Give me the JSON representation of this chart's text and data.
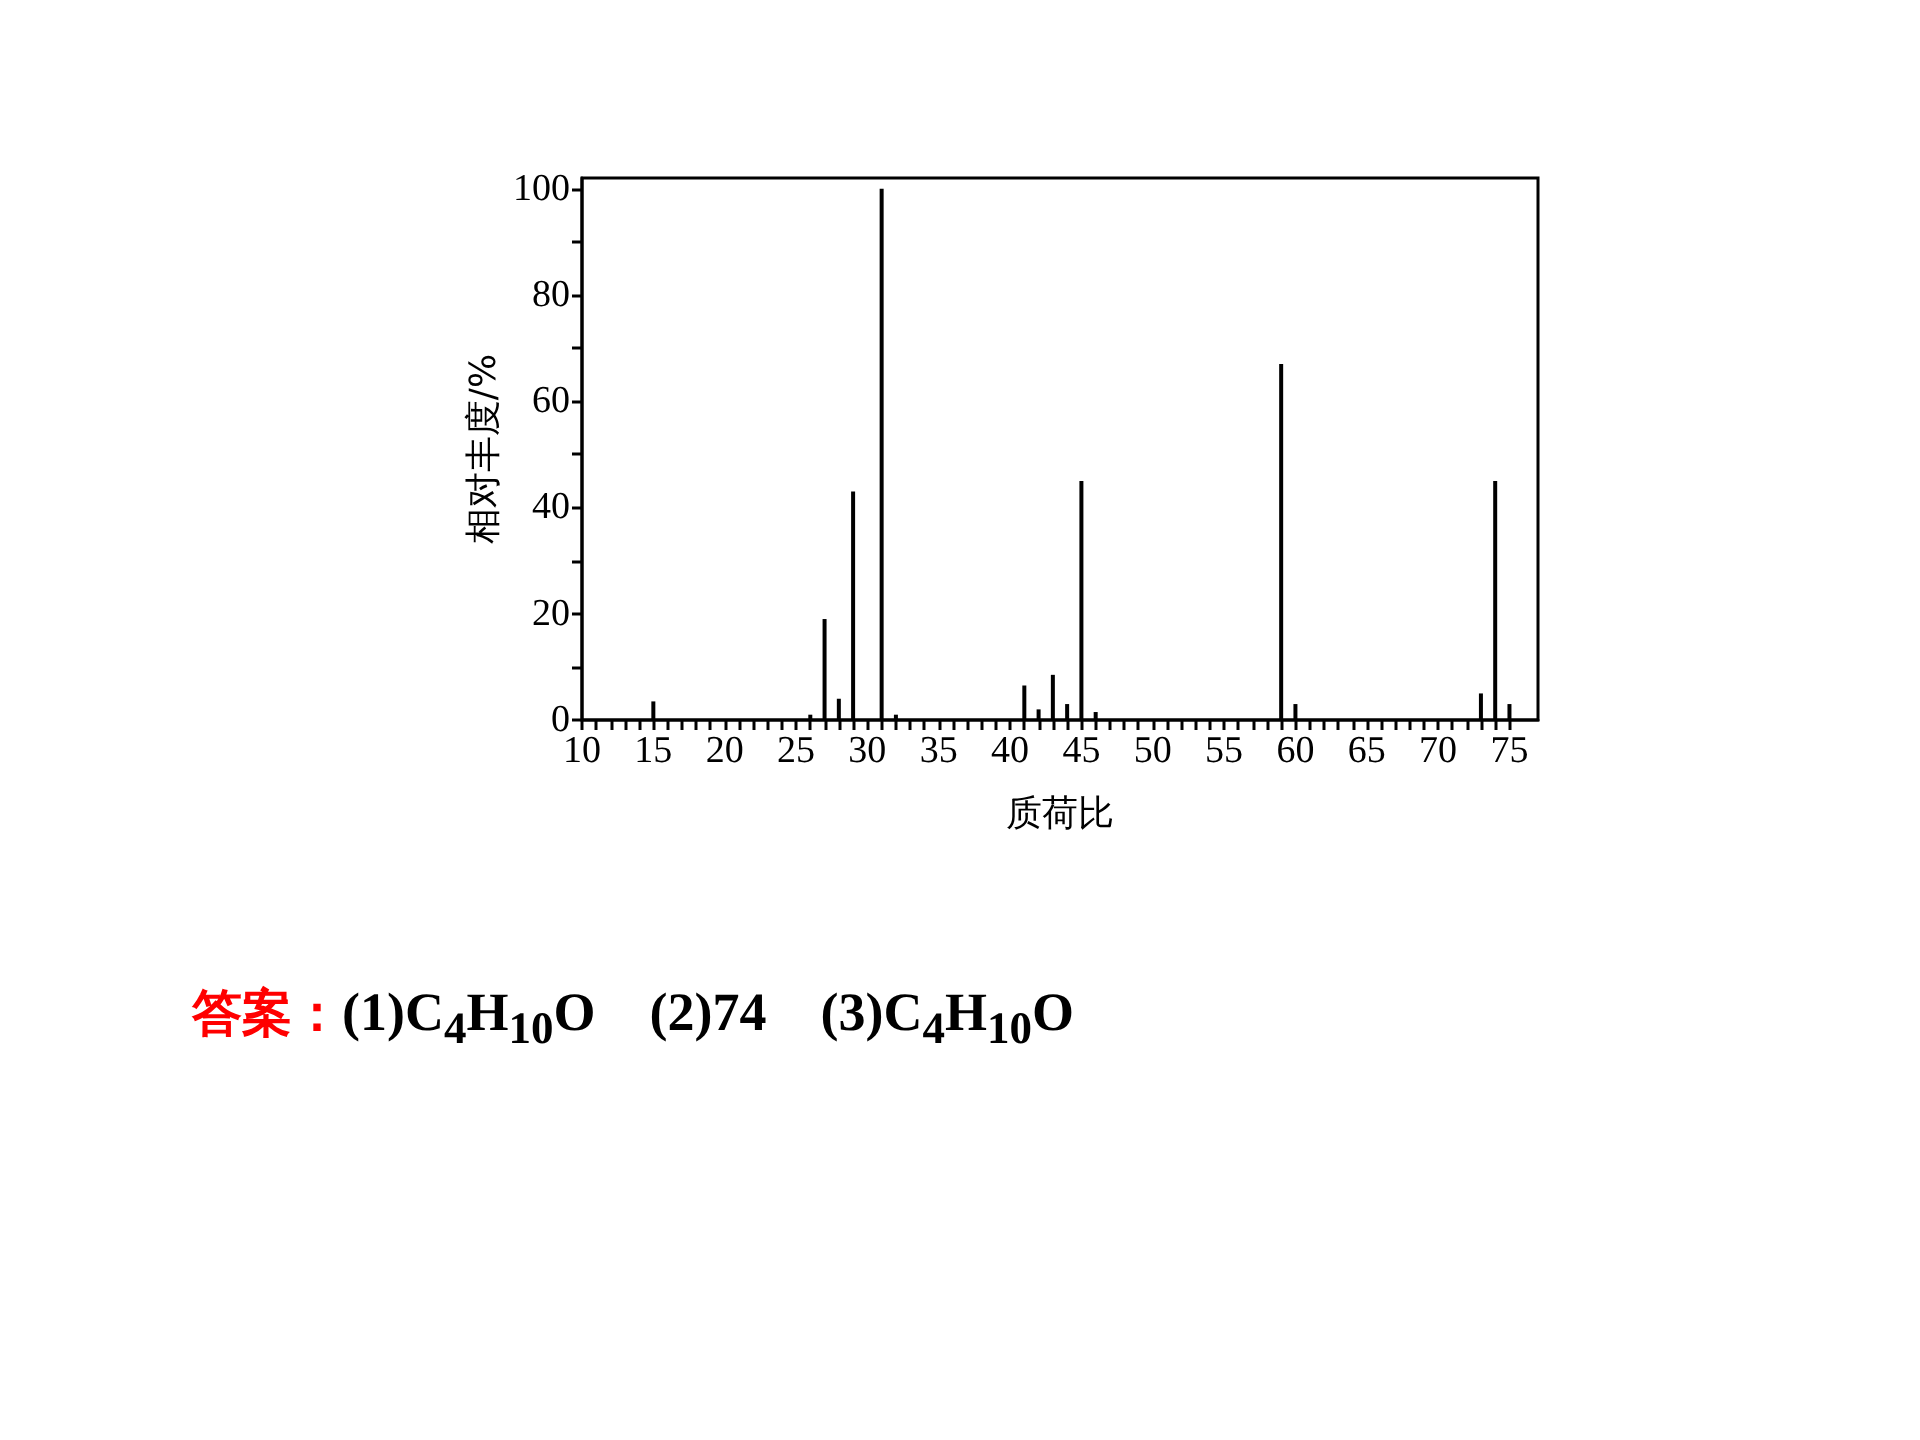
{
  "chart_data": {
    "type": "bar",
    "xlabel": "质荷比",
    "ylabel": "相对丰度/%",
    "x": [
      15,
      26,
      27,
      28,
      29,
      31,
      32,
      41,
      42,
      43,
      44,
      45,
      46,
      59,
      60,
      73,
      74,
      75
    ],
    "values": [
      3.5,
      1,
      19,
      4,
      43,
      100,
      1,
      6.5,
      2,
      8.5,
      3,
      45,
      1.5,
      67,
      3,
      5,
      45,
      3
    ],
    "color": "#000000",
    "xlim": [
      10,
      77
    ],
    "xticks": [
      10,
      {
        "value": 11,
        "label": null
      },
      {
        "value": 12,
        "label": null
      },
      {
        "value": 13,
        "label": null
      },
      {
        "value": 14,
        "label": null
      },
      15,
      {
        "value": 16,
        "label": null
      },
      {
        "value": 17,
        "label": null
      },
      {
        "value": 18,
        "label": null
      },
      {
        "value": 19,
        "label": null
      },
      20,
      {
        "value": 21,
        "label": null
      },
      {
        "value": 22,
        "label": null
      },
      {
        "value": 23,
        "label": null
      },
      {
        "value": 24,
        "label": null
      },
      25,
      {
        "value": 26,
        "label": null
      },
      {
        "value": 27,
        "label": null
      },
      {
        "value": 28,
        "label": null
      },
      {
        "value": 29,
        "label": null
      },
      30,
      {
        "value": 31,
        "label": null
      },
      {
        "value": 32,
        "label": null
      },
      {
        "value": 33,
        "label": null
      },
      {
        "value": 34,
        "label": null
      },
      35,
      {
        "value": 36,
        "label": null
      },
      {
        "value": 37,
        "label": null
      },
      {
        "value": 38,
        "label": null
      },
      {
        "value": 39,
        "label": null
      },
      40,
      {
        "value": 41,
        "label": null
      },
      {
        "value": 42,
        "label": null
      },
      {
        "value": 43,
        "label": null
      },
      {
        "value": 44,
        "label": null
      },
      45,
      {
        "value": 46,
        "label": null
      },
      {
        "value": 47,
        "label": null
      },
      {
        "value": 48,
        "label": null
      },
      {
        "value": 49,
        "label": null
      },
      50,
      {
        "value": 51,
        "label": null
      },
      {
        "value": 52,
        "label": null
      },
      {
        "value": 53,
        "label": null
      },
      {
        "value": 54,
        "label": null
      },
      55,
      {
        "value": 56,
        "label": null
      },
      {
        "value": 57,
        "label": null
      },
      {
        "value": 58,
        "label": null
      },
      {
        "value": 59,
        "label": null
      },
      60,
      {
        "value": 61,
        "label": null
      },
      {
        "value": 62,
        "label": null
      },
      {
        "value": 63,
        "label": null
      },
      {
        "value": 64,
        "label": null
      },
      65,
      {
        "value": 66,
        "label": null
      },
      {
        "value": 67,
        "label": null
      },
      {
        "value": 68,
        "label": null
      },
      {
        "value": 69,
        "label": null
      },
      70,
      {
        "value": 71,
        "label": null
      },
      {
        "value": 72,
        "label": null
      },
      {
        "value": 73,
        "label": null
      },
      {
        "value": 74,
        "label": null
      },
      75
    ],
    "ylim": [
      0,
      102
    ],
    "yticks": [
      0,
      {
        "value": 10,
        "label": null
      },
      20,
      {
        "value": 30,
        "label": null
      },
      40,
      {
        "value": 50,
        "label": null
      },
      60,
      {
        "value": 70,
        "label": null
      },
      80,
      {
        "value": 90,
        "label": null
      },
      100
    ],
    "grid": false,
    "annotations": [
      "答案：",
      "(1)C$_{4}$H$_{10}$O    (2)74    (3)C$_{4}$H$_{10}$O"
    ]
  }
}
